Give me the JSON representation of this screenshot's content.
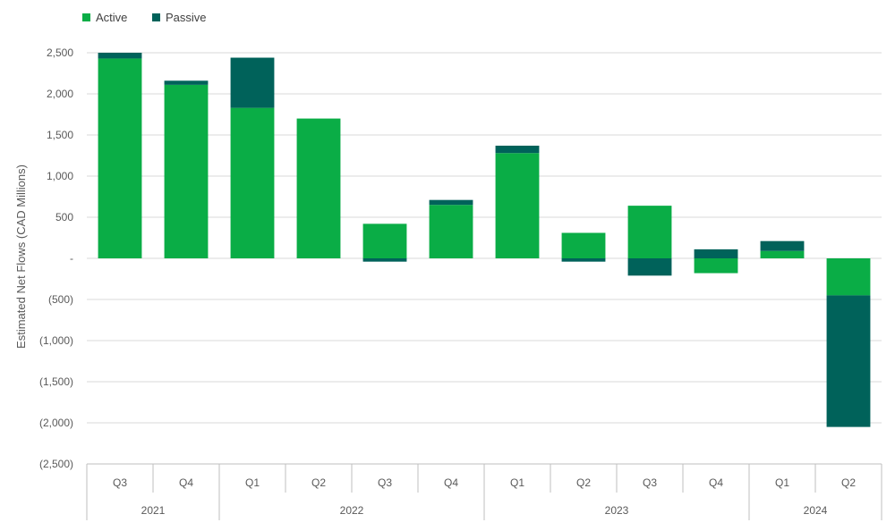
{
  "chart_data": {
    "type": "bar",
    "stacked": true,
    "ylabel": "Estimated Net Flows (CAD Millions)",
    "ylim": [
      -2500,
      2500
    ],
    "yticks": [
      2500,
      2000,
      1500,
      1000,
      500,
      0,
      -500,
      -1000,
      -1500,
      -2000,
      -2500
    ],
    "ytick_labels": [
      "2,500",
      "2,000",
      "1,500",
      "1,000",
      "500",
      "-",
      "(500)",
      "(1,000)",
      "(1,500)",
      "(2,000)",
      "(2,500)"
    ],
    "categories": [
      "Q3",
      "Q4",
      "Q1",
      "Q2",
      "Q3",
      "Q4",
      "Q1",
      "Q2",
      "Q3",
      "Q4",
      "Q1",
      "Q2"
    ],
    "year_groups": [
      {
        "label": "2021",
        "count": 2
      },
      {
        "label": "2022",
        "count": 4
      },
      {
        "label": "2023",
        "count": 4
      },
      {
        "label": "2024",
        "count": 2
      }
    ],
    "series": [
      {
        "name": "Active",
        "color": "#0aad46",
        "values": [
          2430,
          2110,
          1830,
          1700,
          420,
          650,
          1280,
          310,
          640,
          -180,
          90,
          -450
        ]
      },
      {
        "name": "Passive",
        "color": "#00625a",
        "values": [
          70,
          50,
          610,
          0,
          -40,
          60,
          90,
          -40,
          -210,
          110,
          120,
          -1600
        ]
      }
    ],
    "legend_position": "top-left",
    "grid": true
  }
}
